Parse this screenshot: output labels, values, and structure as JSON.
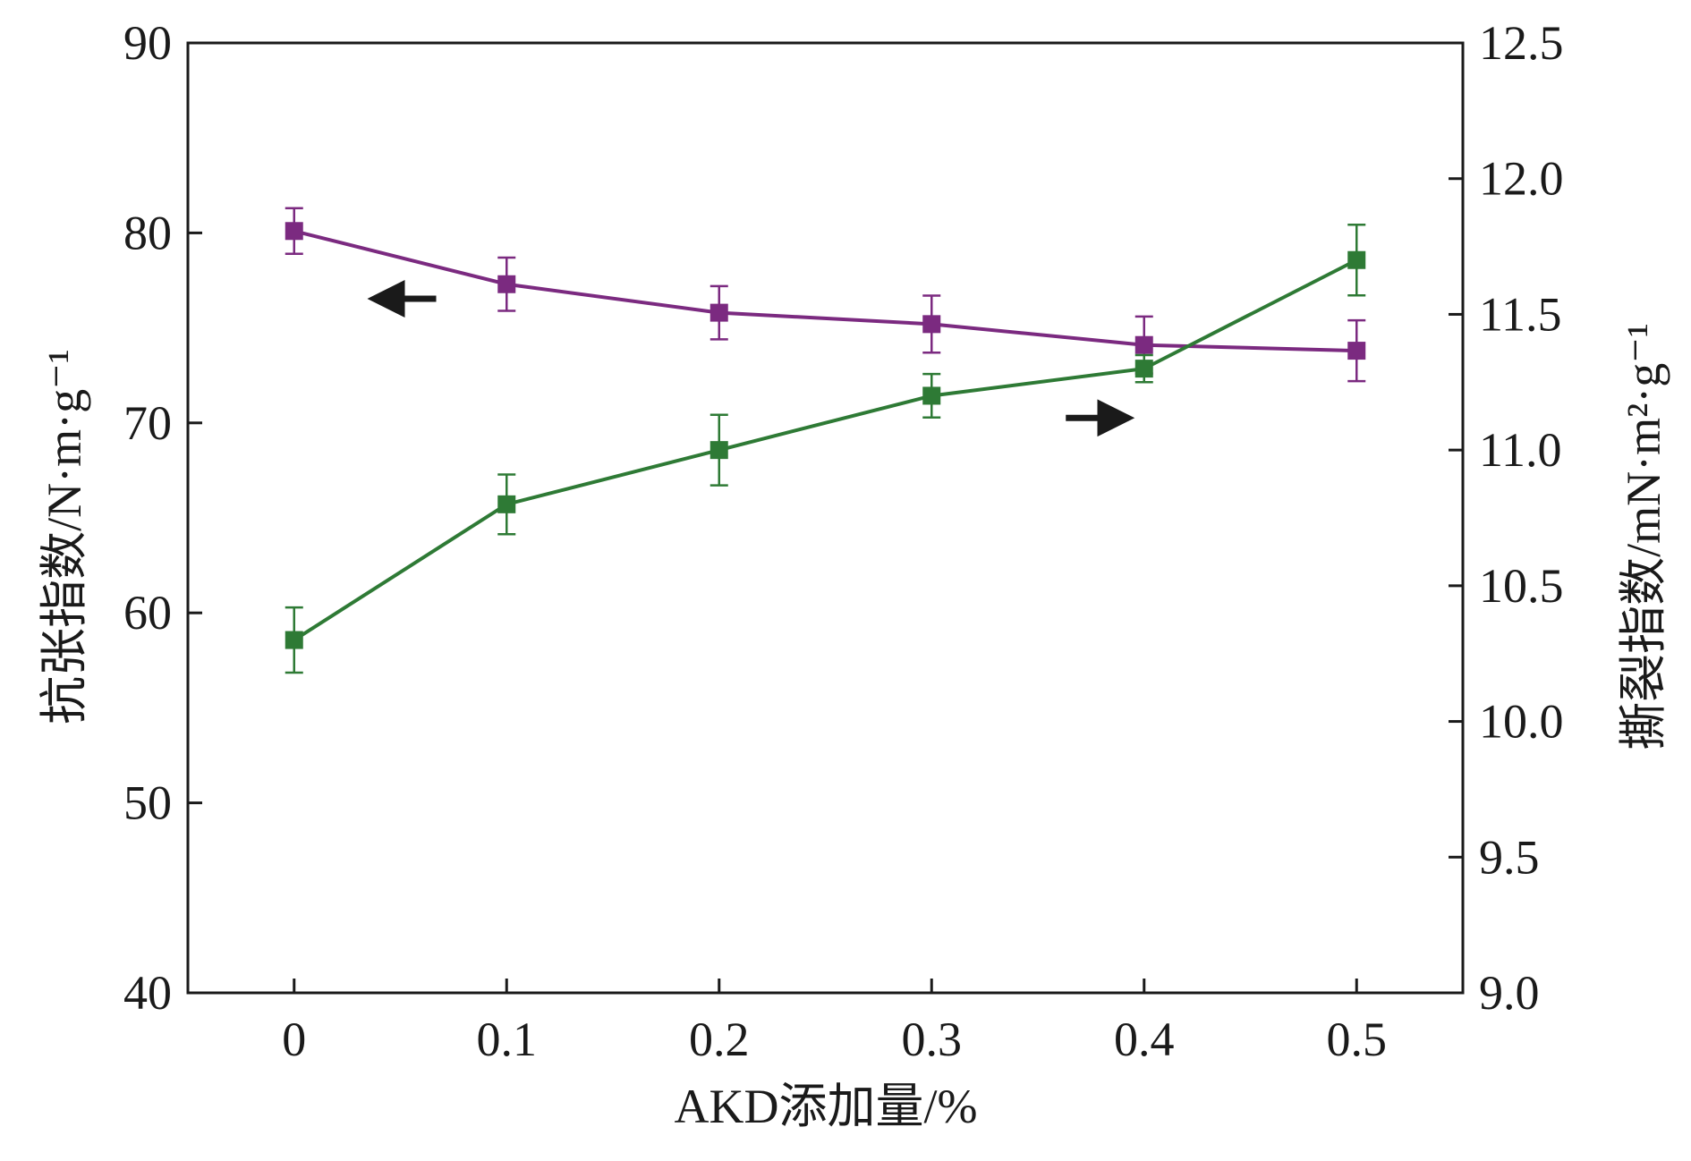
{
  "chart_data": {
    "type": "line",
    "x": [
      0,
      0.1,
      0.2,
      0.3,
      0.4,
      0.5
    ],
    "xlabel": "AKD添加量/%",
    "x_ticks": [
      "0",
      "0.1",
      "0.2",
      "0.3",
      "0.4",
      "0.5"
    ],
    "xlim": [
      -0.05,
      0.55
    ],
    "ylabel_left": "抗张指数/N·m·g⁻¹",
    "ylabel_right": "撕裂指数/mN·m²·g⁻¹",
    "ylim_left": [
      40,
      90
    ],
    "ylim_right": [
      9.0,
      12.5
    ],
    "left_ticks": [
      "40",
      "50",
      "60",
      "70",
      "80",
      "90"
    ],
    "right_ticks": [
      "9.0",
      "9.5",
      "10.0",
      "10.5",
      "11.0",
      "11.5",
      "12.0",
      "12.5"
    ],
    "grid": false,
    "series": [
      {
        "axis": "left",
        "color": "#7b2a80",
        "marker": "square",
        "values": [
          80.1,
          77.3,
          75.8,
          75.2,
          74.1,
          73.8
        ],
        "errors": [
          1.2,
          1.4,
          1.4,
          1.5,
          1.5,
          1.6
        ]
      },
      {
        "axis": "right",
        "color": "#2e7a35",
        "marker": "square",
        "values": [
          10.3,
          10.8,
          11.0,
          11.2,
          11.3,
          11.7
        ],
        "errors": [
          0.12,
          0.11,
          0.13,
          0.08,
          0.05,
          0.13
        ]
      }
    ],
    "annotations": [
      {
        "type": "arrow",
        "direction": "left",
        "points_to_axis": "left",
        "near_series": 0
      },
      {
        "type": "arrow",
        "direction": "right",
        "points_to_axis": "right",
        "near_series": 1
      }
    ]
  }
}
